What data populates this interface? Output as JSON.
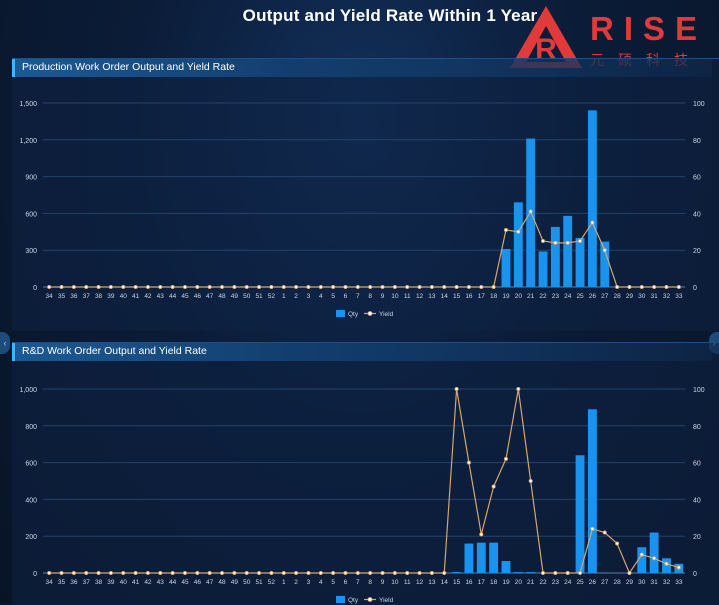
{
  "page": {
    "title": "Output and Yield Rate Within 1 Year",
    "logo": {
      "name": "RISE",
      "sub": "元硕科技",
      "glyph": "R"
    }
  },
  "colors": {
    "qty": "#1a93ef",
    "yield": "#d7a66a",
    "grid": "#23436b",
    "text": "#c9d6e6"
  },
  "chart_data": [
    {
      "type": "bar",
      "title": "Production Work Order Output and Yield Rate",
      "categories": [
        "34",
        "35",
        "36",
        "37",
        "38",
        "39",
        "40",
        "41",
        "42",
        "43",
        "44",
        "45",
        "46",
        "47",
        "48",
        "49",
        "50",
        "51",
        "52",
        "1",
        "2",
        "3",
        "4",
        "5",
        "6",
        "7",
        "8",
        "9",
        "10",
        "11",
        "12",
        "13",
        "14",
        "15",
        "16",
        "17",
        "18",
        "19",
        "20",
        "21",
        "22",
        "23",
        "24",
        "25",
        "26",
        "27",
        "28",
        "29",
        "30",
        "31",
        "32",
        "33"
      ],
      "series": [
        {
          "name": "Qty",
          "kind": "bar",
          "axis": "left",
          "values": [
            0,
            0,
            0,
            0,
            0,
            0,
            0,
            0,
            0,
            0,
            0,
            0,
            0,
            0,
            0,
            0,
            0,
            0,
            0,
            0,
            0,
            0,
            0,
            0,
            0,
            0,
            0,
            0,
            0,
            0,
            0,
            0,
            0,
            0,
            0,
            0,
            0,
            310,
            690,
            1210,
            290,
            490,
            580,
            400,
            1440,
            370,
            0,
            0,
            0,
            0,
            0,
            0
          ]
        },
        {
          "name": "Yield",
          "kind": "line",
          "axis": "right",
          "values": [
            0,
            0,
            0,
            0,
            0,
            0,
            0,
            0,
            0,
            0,
            0,
            0,
            0,
            0,
            0,
            0,
            0,
            0,
            0,
            0,
            0,
            0,
            0,
            0,
            0,
            0,
            0,
            0,
            0,
            0,
            0,
            0,
            0,
            0,
            0,
            0,
            0,
            31,
            30,
            41,
            25,
            24,
            24,
            25,
            35,
            20,
            0,
            0,
            0,
            0,
            0,
            0
          ]
        }
      ],
      "ylim_left": [
        0,
        1500
      ],
      "yticks_left": [
        0,
        300,
        600,
        900,
        1200,
        1500
      ],
      "ytick_labels_left": [
        "0",
        "300",
        "600",
        "900",
        "1,200",
        "1,500"
      ],
      "ylim_right": [
        0,
        100
      ],
      "yticks_right": [
        0,
        20,
        40,
        60,
        80,
        100
      ],
      "legend": {
        "position": "bottom-center",
        "labels": [
          "Qty",
          "Yield"
        ]
      },
      "grid": true
    },
    {
      "type": "bar",
      "title": "R&D Work Order Output and Yield Rate",
      "categories": [
        "34",
        "35",
        "36",
        "37",
        "38",
        "39",
        "40",
        "41",
        "42",
        "43",
        "44",
        "45",
        "46",
        "47",
        "48",
        "49",
        "50",
        "51",
        "52",
        "1",
        "2",
        "3",
        "4",
        "5",
        "6",
        "7",
        "8",
        "9",
        "10",
        "11",
        "12",
        "13",
        "14",
        "15",
        "16",
        "17",
        "18",
        "19",
        "20",
        "21",
        "22",
        "23",
        "24",
        "25",
        "26",
        "27",
        "28",
        "29",
        "30",
        "31",
        "32",
        "33"
      ],
      "series": [
        {
          "name": "Qty",
          "kind": "bar",
          "axis": "left",
          "values": [
            0,
            0,
            0,
            0,
            0,
            0,
            0,
            0,
            0,
            0,
            0,
            0,
            0,
            0,
            0,
            0,
            0,
            0,
            0,
            0,
            0,
            0,
            0,
            0,
            0,
            0,
            0,
            0,
            0,
            0,
            0,
            0,
            0,
            5,
            160,
            165,
            165,
            65,
            5,
            5,
            0,
            0,
            0,
            640,
            890,
            0,
            0,
            0,
            140,
            220,
            80,
            50
          ]
        },
        {
          "name": "Yield",
          "kind": "line",
          "axis": "right",
          "values": [
            0,
            0,
            0,
            0,
            0,
            0,
            0,
            0,
            0,
            0,
            0,
            0,
            0,
            0,
            0,
            0,
            0,
            0,
            0,
            0,
            0,
            0,
            0,
            0,
            0,
            0,
            0,
            0,
            0,
            0,
            0,
            0,
            0,
            100,
            60,
            21,
            47,
            62,
            100,
            50,
            0,
            0,
            0,
            0,
            24,
            22,
            16,
            0,
            10,
            8,
            5,
            3
          ]
        }
      ],
      "ylim_left": [
        0,
        1000
      ],
      "yticks_left": [
        0,
        200,
        400,
        600,
        800,
        1000
      ],
      "ytick_labels_left": [
        "0",
        "200",
        "400",
        "600",
        "800",
        "1,000"
      ],
      "ylim_right": [
        0,
        100
      ],
      "yticks_right": [
        0,
        20,
        40,
        60,
        80,
        100
      ],
      "legend": {
        "position": "bottom-center",
        "labels": [
          "Qty",
          "Yield"
        ]
      },
      "grid": true
    }
  ]
}
